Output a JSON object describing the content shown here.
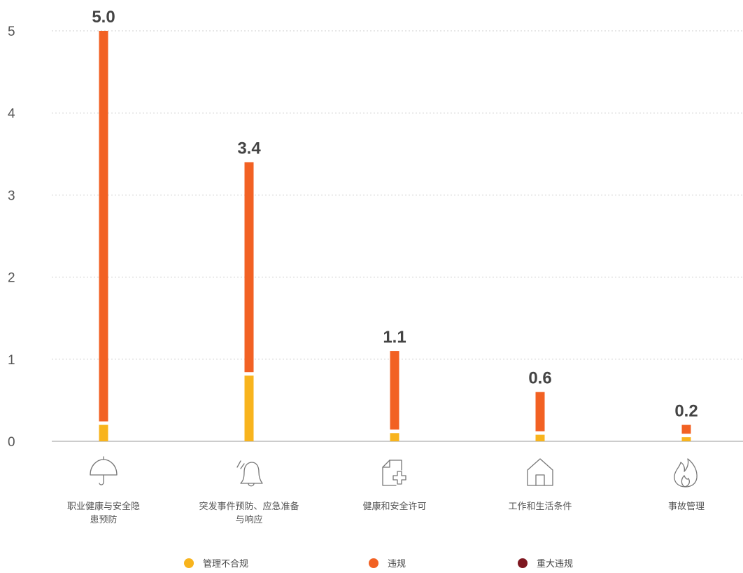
{
  "chart_data": {
    "type": "bar",
    "stacked": true,
    "categories": [
      "职业健康与安全隐患预防",
      "突发事件预防、应急准备与响应",
      "健康和安全许可",
      "工作和生活条件",
      "事故管理"
    ],
    "category_label_lines": [
      [
        "职业健康与安全隐",
        "患预防"
      ],
      [
        "突发事件预防、应急准备",
        "与响应"
      ],
      [
        "健康和安全许可"
      ],
      [
        "工作和生活条件"
      ],
      [
        "事故管理"
      ]
    ],
    "category_icons": [
      "umbrella-icon",
      "bell-icon",
      "medical-document-icon",
      "house-icon",
      "fire-icon"
    ],
    "series": [
      {
        "name": "管理不合规",
        "color": "#f8b41d",
        "values": [
          0.2,
          0.8,
          0.1,
          0.08,
          0.05
        ]
      },
      {
        "name": "违规",
        "color": "#f26123",
        "values": [
          4.8,
          2.6,
          1.0,
          0.52,
          0.15
        ]
      },
      {
        "name": "重大违规",
        "color": "#7e1720",
        "values": [
          0,
          0,
          0,
          0,
          0
        ]
      }
    ],
    "totals": [
      "5.0",
      "3.4",
      "1.1",
      "0.6",
      "0.2"
    ],
    "yticks": [
      "0",
      "1",
      "2",
      "3",
      "4",
      "5"
    ],
    "ylim": [
      0,
      5
    ],
    "grid": true,
    "legend_position": "bottom",
    "title": "",
    "xlabel": "",
    "ylabel": ""
  }
}
